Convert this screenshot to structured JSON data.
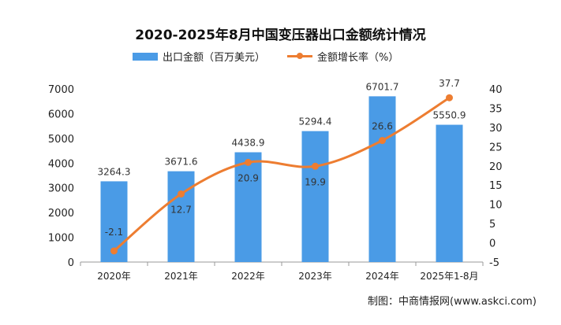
{
  "chart_data": {
    "type": "bar+line",
    "title": "2020-2025年8月中国变压器出口金额统计情况",
    "categories": [
      "2020年",
      "2021年",
      "2022年",
      "2023年",
      "2024年",
      "2025年1-8月"
    ],
    "series": [
      {
        "name": "出口金额（百万美元）",
        "type": "bar",
        "axis": "left",
        "color": "#4a9be6",
        "values": [
          3264.3,
          3671.6,
          4438.9,
          5294.4,
          6701.7,
          5550.9
        ],
        "labels": [
          "3264.3",
          "3671.6",
          "4438.9",
          "5294.4",
          "6701.7",
          "5550.9"
        ]
      },
      {
        "name": "金额增长率（%）",
        "type": "line",
        "axis": "right",
        "color": "#ed7d31",
        "values": [
          -2.1,
          12.7,
          20.9,
          19.9,
          26.6,
          37.7
        ],
        "labels": [
          "-2.1",
          "12.7",
          "20.9",
          "19.9",
          "26.6",
          "37.7"
        ]
      }
    ],
    "y_left": {
      "range": [
        0,
        7000
      ],
      "ticks": [
        "0",
        "1000",
        "2000",
        "3000",
        "4000",
        "5000",
        "6000",
        "7000"
      ]
    },
    "y_right": {
      "range": [
        -5,
        40
      ],
      "ticks": [
        "-5",
        "0",
        "5",
        "10",
        "15",
        "20",
        "25",
        "30",
        "35",
        "40"
      ]
    },
    "legend_position": "top-center",
    "grid": false
  },
  "credit": "制图：中商情报网(www.askci.com)"
}
